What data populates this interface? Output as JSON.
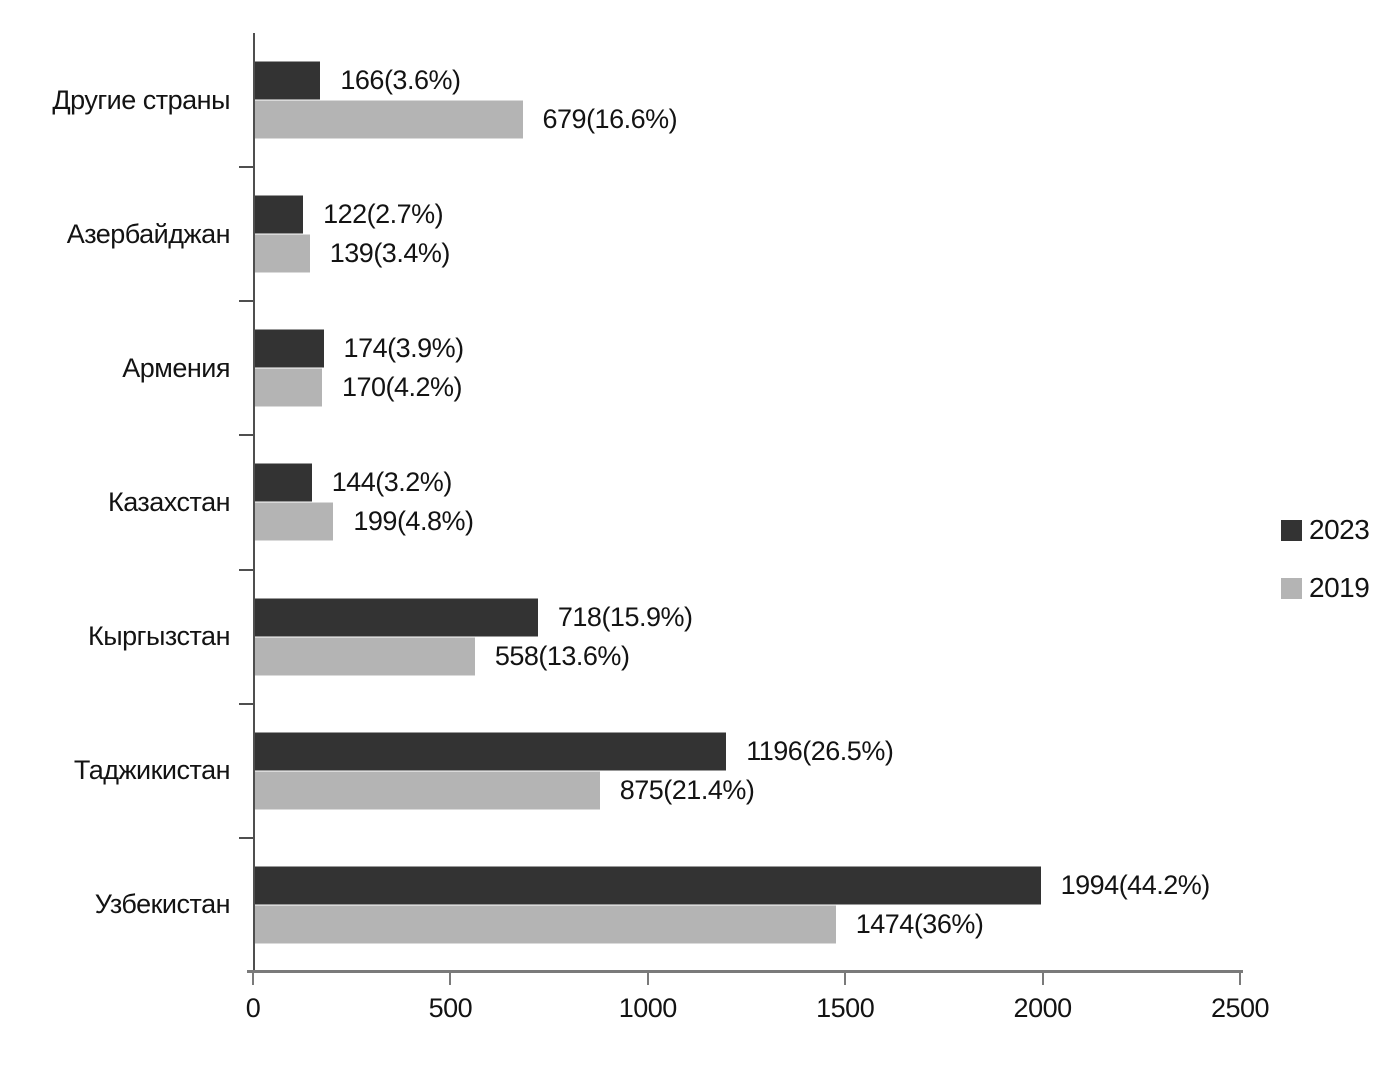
{
  "chart_data": {
    "type": "bar",
    "orientation": "horizontal",
    "title": "",
    "xlabel": "",
    "ylabel": "",
    "xlim": [
      0,
      2500
    ],
    "x_ticks": [
      0,
      500,
      1000,
      1500,
      2000,
      2500
    ],
    "grid": false,
    "legend_position": "right",
    "categories": [
      "Другие страны",
      "Азербайджан",
      "Армения",
      "Казахстан",
      "Кыргызстан",
      "Таджикистан",
      "Узбекистан"
    ],
    "series": [
      {
        "name": "2023",
        "color": "#333333",
        "values": [
          166,
          122,
          174,
          144,
          718,
          1196,
          1994
        ],
        "labels": [
          "166(3.6%)",
          "122(2.7%)",
          "174(3.9%)",
          "144(3.2%)",
          "718(15.9%)",
          "1196(26.5%)",
          "1994(44.2%)"
        ]
      },
      {
        "name": "2019",
        "color": "#b4b4b4",
        "values": [
          679,
          139,
          170,
          199,
          558,
          875,
          1474
        ],
        "labels": [
          "679(16.6%)",
          "139(3.4%)",
          "170(4.2%)",
          "199(4.8%)",
          "558(13.6%)",
          "875(21.4%)",
          "1474(36%)"
        ]
      }
    ]
  },
  "colors": {
    "background": "#ffffff",
    "series_2023": "#333333",
    "series_2019": "#b4b4b4",
    "y_axis_line": "#4f4f4f",
    "x_axis_line": "#7a7a7a",
    "text": "#131313"
  }
}
